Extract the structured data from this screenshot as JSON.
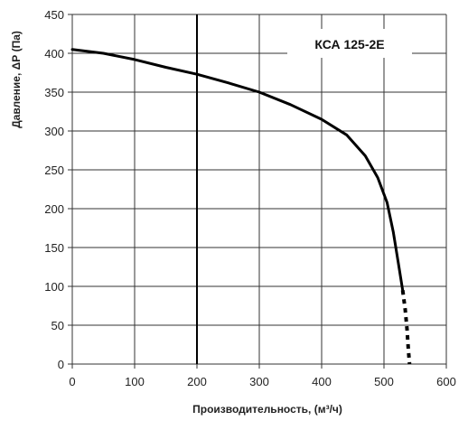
{
  "chart_data": {
    "type": "line",
    "title": "",
    "model_label": "КСА 125-2Е",
    "xlabel": "Производительность, (м³/ч)",
    "ylabel": "Давление, ΔР (Па)",
    "xlim": [
      0,
      600
    ],
    "ylim": [
      0,
      450
    ],
    "x_ticks": [
      0,
      100,
      200,
      300,
      400,
      500,
      600
    ],
    "y_ticks": [
      0,
      50,
      100,
      150,
      200,
      250,
      300,
      350,
      400,
      450
    ],
    "grid": true,
    "vertical_marker_x": 200,
    "series": [
      {
        "line_style": "solid",
        "x": [
          0,
          50,
          100,
          150,
          200,
          250,
          300,
          350,
          400,
          440,
          470,
          490,
          505,
          515,
          523,
          530
        ],
        "y": [
          405,
          400,
          392,
          382,
          373,
          362,
          350,
          334,
          315,
          295,
          268,
          240,
          208,
          170,
          130,
          95
        ]
      },
      {
        "line_style": "dotted",
        "x": [
          530,
          534,
          537,
          539,
          541
        ],
        "y": [
          95,
          70,
          45,
          20,
          0
        ]
      }
    ],
    "colors": {
      "curve": "#000000",
      "grid": "#333333",
      "marker": "#000000"
    }
  }
}
